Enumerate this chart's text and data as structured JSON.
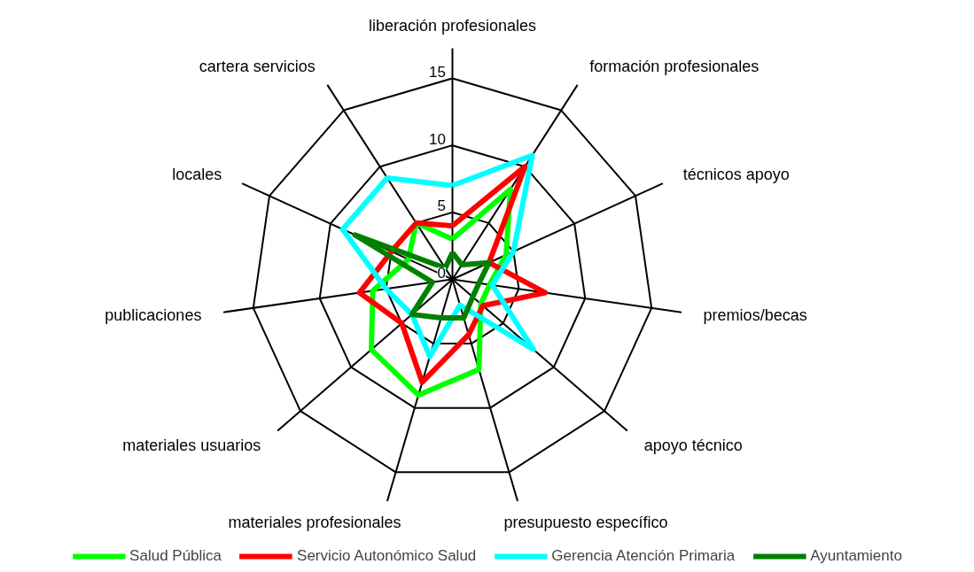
{
  "chart_data": {
    "type": "radar",
    "categories": [
      "liberación profesionales",
      "formación profesionales",
      "técnicos apoyo",
      "premios/becas",
      "apoyo técnico",
      "presupuesto específico",
      "materiales profesionales",
      "materiales usuarios",
      "publicaciones",
      "locales",
      "cartera servicios"
    ],
    "series": [
      {
        "name": "Salud Pública",
        "color": "#00ff00",
        "values": [
          3,
          8,
          4.4,
          2.8,
          2.8,
          7,
          9,
          8,
          6,
          3.6,
          5
        ]
      },
      {
        "name": "Servicio Autonómico Salud",
        "color": "#ff0000",
        "values": [
          4,
          10,
          3,
          7,
          3,
          4.3,
          8,
          5,
          7,
          5,
          5
        ]
      },
      {
        "name": "Gerencia Atención Primaria",
        "color": "#00ffff",
        "values": [
          7,
          11,
          5,
          3,
          8,
          2,
          6,
          4,
          5,
          9,
          9
        ]
      },
      {
        "name": "Ayuntamiento",
        "color": "#008000",
        "values": [
          2,
          1.3,
          3,
          2,
          2,
          3,
          3,
          4,
          1.5,
          8,
          1
        ]
      }
    ],
    "ylim": [
      0,
      15
    ],
    "yticks": [
      0,
      5,
      10,
      15
    ],
    "legend": "bottom",
    "grid": true
  }
}
